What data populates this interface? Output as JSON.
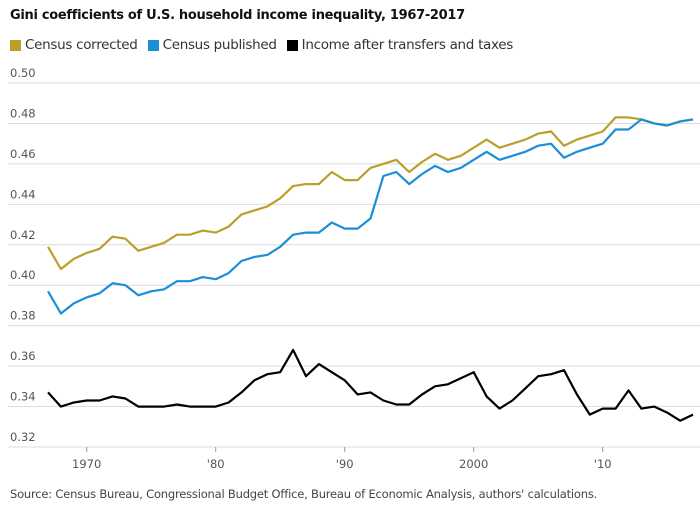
{
  "chart_data": {
    "type": "line",
    "title": "Gini coefficients of U.S. household income inequality, 1967-2017",
    "x": [
      1967,
      1968,
      1969,
      1970,
      1971,
      1972,
      1973,
      1974,
      1975,
      1976,
      1977,
      1978,
      1979,
      1980,
      1981,
      1982,
      1983,
      1984,
      1985,
      1986,
      1987,
      1988,
      1989,
      1990,
      1991,
      1992,
      1993,
      1994,
      1995,
      1996,
      1997,
      1998,
      1999,
      2000,
      2001,
      2002,
      2003,
      2004,
      2005,
      2006,
      2007,
      2008,
      2009,
      2010,
      2011,
      2012,
      2013,
      2014,
      2015,
      2016,
      2017
    ],
    "series": [
      {
        "name": "Census corrected",
        "color": "#b9a02a",
        "values": [
          0.419,
          0.408,
          0.413,
          0.416,
          0.418,
          0.424,
          0.423,
          0.417,
          0.419,
          0.421,
          0.425,
          0.425,
          0.427,
          0.426,
          0.429,
          0.435,
          0.437,
          0.439,
          0.443,
          0.449,
          0.45,
          0.45,
          0.456,
          0.452,
          0.452,
          0.458,
          0.46,
          0.462,
          0.456,
          0.461,
          0.465,
          0.462,
          0.464,
          0.468,
          0.472,
          0.468,
          0.47,
          0.472,
          0.475,
          0.476,
          0.469,
          0.472,
          0.474,
          0.476,
          0.483,
          0.483,
          0.482,
          0.48,
          0.479,
          0.481,
          0.482
        ]
      },
      {
        "name": "Census published",
        "color": "#1a8fd6",
        "values": [
          0.397,
          0.386,
          0.391,
          0.394,
          0.396,
          0.401,
          0.4,
          0.395,
          0.397,
          0.398,
          0.402,
          0.402,
          0.404,
          0.403,
          0.406,
          0.412,
          0.414,
          0.415,
          0.419,
          0.425,
          0.426,
          0.426,
          0.431,
          0.428,
          0.428,
          0.433,
          0.454,
          0.456,
          0.45,
          0.455,
          0.459,
          0.456,
          0.458,
          0.462,
          0.466,
          0.462,
          0.464,
          0.466,
          0.469,
          0.47,
          0.463,
          0.466,
          0.468,
          0.47,
          0.477,
          0.477,
          0.482,
          0.48,
          0.479,
          0.481,
          0.482
        ]
      },
      {
        "name": "Income after transfers and taxes",
        "color": "#000000",
        "values": [
          0.347,
          0.34,
          0.342,
          0.343,
          0.343,
          0.345,
          0.344,
          0.34,
          0.34,
          0.34,
          0.341,
          0.34,
          0.34,
          0.34,
          0.342,
          0.347,
          0.353,
          0.356,
          0.357,
          0.368,
          0.355,
          0.361,
          0.357,
          0.353,
          0.346,
          0.347,
          0.343,
          0.341,
          0.341,
          0.346,
          0.35,
          0.351,
          0.354,
          0.357,
          0.345,
          0.339,
          0.343,
          0.349,
          0.355,
          0.356,
          0.358,
          0.346,
          0.336,
          0.339,
          0.339,
          0.348,
          0.339,
          0.34,
          0.337,
          0.333,
          0.336
        ]
      }
    ],
    "ylim": [
      0.32,
      0.5
    ],
    "yticks": [
      "0.50",
      "0.48",
      "0.46",
      "0.44",
      "0.42",
      "0.40",
      "0.38",
      "0.36",
      "0.34",
      "0.32"
    ],
    "xticks": [
      {
        "value": 1970,
        "label": "1970"
      },
      {
        "value": 1980,
        "label": "'80"
      },
      {
        "value": 1990,
        "label": "'90"
      },
      {
        "value": 2000,
        "label": "2000"
      },
      {
        "value": 2010,
        "label": "'10"
      }
    ],
    "grid": true,
    "legend": "top-left",
    "source": "Source: Census Bureau, Congressional Budget Office, Bureau of Economic Analysis, authors' calculations."
  }
}
